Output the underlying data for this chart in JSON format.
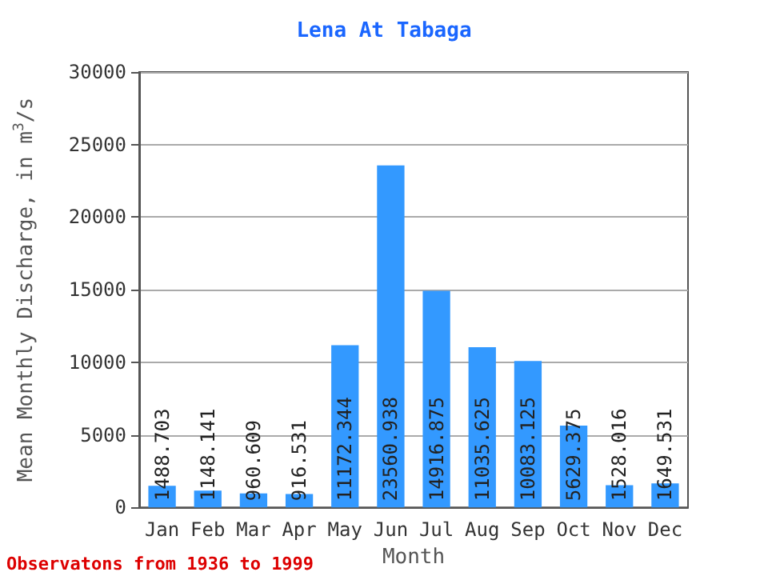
{
  "chart_data": {
    "type": "bar",
    "title": "Lena At Tabaga",
    "xlabel": "Month",
    "ylabel": "Mean Monthly Discharge, in m$^{3}$/s",
    "categories": [
      "Jan",
      "Feb",
      "Mar",
      "Apr",
      "May",
      "Jun",
      "Jul",
      "Aug",
      "Sep",
      "Oct",
      "Nov",
      "Dec"
    ],
    "values": [
      1488.703,
      1148.141,
      960.609,
      916.531,
      11172.344,
      23560.938,
      14916.875,
      11035.625,
      10083.125,
      5629.375,
      1528.016,
      1649.531
    ],
    "color": "#3399ff",
    "ylim": [
      0,
      30000
    ],
    "yticks": [
      0,
      5000,
      10000,
      15000,
      20000,
      25000,
      30000
    ],
    "grid": "y",
    "data_labels": true,
    "annotations": [
      "Observatons from 1936 to 1999"
    ]
  }
}
